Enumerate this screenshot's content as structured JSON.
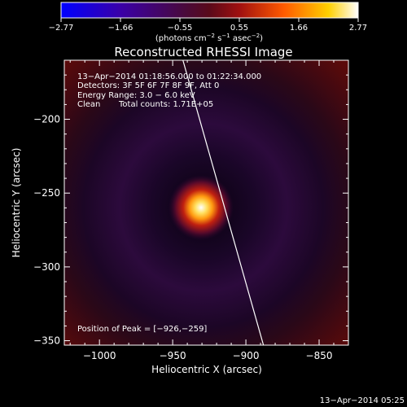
{
  "chart_data": {
    "type": "heatmap",
    "title": "Reconstructed RHESSI Image",
    "xlabel": "Heliocentric X (arcsec)",
    "ylabel": "Heliocentric Y (arcsec)",
    "xlim": [
      -1024,
      -830
    ],
    "ylim": [
      -353,
      -160
    ],
    "xticks": [
      -1000,
      -950,
      -900,
      -850
    ],
    "yticks": [
      -200,
      -250,
      -300,
      -350
    ],
    "xtick_labels": [
      "−1000",
      "−950",
      "−900",
      "−850"
    ],
    "ytick_labels": [
      "−200",
      "−250",
      "−300",
      "−350"
    ],
    "colorbar": {
      "min": -2.77,
      "max": 2.77,
      "colormap": "blue-purple-red-yellow-white",
      "tick_labels": [
        "−2.77",
        "−1.66",
        "−0.55",
        "0.55",
        "1.66",
        "2.77"
      ],
      "unit_parts": [
        "(photons cm",
        "−2",
        " s",
        "−1",
        " asec",
        "−2",
        ")"
      ]
    },
    "peak": {
      "x": -926,
      "y": -259,
      "value": 2.77
    },
    "limb_line": [
      [
        -943,
        -160
      ],
      [
        -888,
        -353
      ]
    ],
    "annotations": {
      "time_range": "13−Apr−2014 01:18:56.000 to 01:22:34.000",
      "detectors": "Detectors: 3F 5F 6F 7F 8F 9F, Att 0",
      "energy": "Energy Range: 3.0 − 6.0 keV",
      "clean": "Clean",
      "total_counts": "Total counts: 1.71E+05",
      "peak_label": "Position of Peak = [−926,−259]"
    }
  },
  "footer": {
    "timestamp": "13−Apr−2014 05:25"
  }
}
